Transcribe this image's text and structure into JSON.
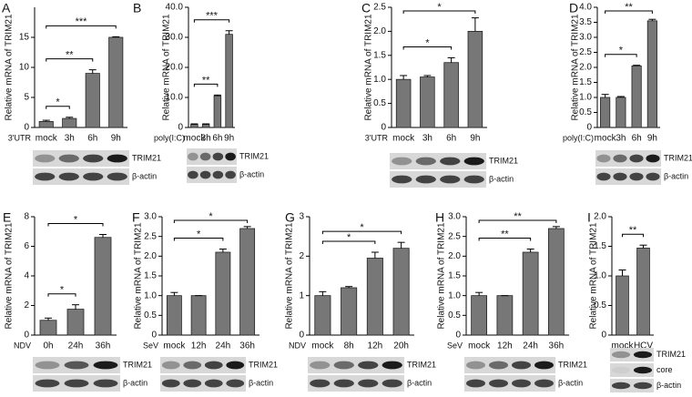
{
  "chart_data": [
    {
      "type": "bar",
      "panel": "A",
      "y_label": "Relative mRNA of TRIM21",
      "treatment": "3'UTR",
      "categories": [
        "mock",
        "3h",
        "6h",
        "9h"
      ],
      "values": [
        1.0,
        1.5,
        9.0,
        15.0
      ],
      "errors": [
        0.2,
        0.2,
        0.6,
        0.1
      ],
      "ylim": [
        0,
        20
      ],
      "yticks": [
        0,
        5,
        10,
        15
      ],
      "annotations": [
        {
          "between": [
            0,
            1
          ],
          "label": "*"
        },
        {
          "between": [
            0,
            2
          ],
          "label": "**"
        },
        {
          "between": [
            0,
            3
          ],
          "label": "***"
        }
      ],
      "blot_labels": [
        "TRIM21",
        "β-actin"
      ],
      "color": "#777777"
    },
    {
      "type": "bar",
      "panel": "B",
      "y_label": "Relative mRNA of TRIM21",
      "treatment": "poly(I:C)",
      "categories": [
        "mock",
        "3h",
        "6h",
        "9h"
      ],
      "values": [
        1.0,
        1.0,
        10.5,
        31.0
      ],
      "errors": [
        0.2,
        0.2,
        0.3,
        1.2
      ],
      "ylim": [
        0,
        40
      ],
      "yticks": [
        0,
        {
          "value": 10,
          "label": "10.0"
        },
        {
          "value": 20,
          "label": "20.0"
        },
        {
          "value": 30,
          "label": "30.0"
        },
        {
          "value": 40,
          "label": "40.0"
        }
      ],
      "annotations": [
        {
          "between": [
            0,
            2
          ],
          "label": "**"
        },
        {
          "between": [
            0,
            3
          ],
          "label": "***"
        }
      ],
      "blot_labels": [
        "TRIM21",
        "β-actin"
      ],
      "color": "#777777"
    },
    {
      "type": "bar",
      "panel": "C",
      "y_label": "Relative mRNA of TRIM21",
      "treatment": "3'UTR",
      "categories": [
        "mock",
        "3h",
        "6h",
        "9h"
      ],
      "values": [
        1.0,
        1.05,
        1.35,
        2.0
      ],
      "errors": [
        0.08,
        0.03,
        0.1,
        0.28
      ],
      "ylim": [
        0,
        2.5
      ],
      "yticks": [
        0,
        0.5,
        {
          "value": 1,
          "label": "1.0"
        },
        1.5,
        {
          "value": 2,
          "label": "2.0"
        },
        2.5
      ],
      "annotations": [
        {
          "between": [
            0,
            2
          ],
          "label": "*"
        },
        {
          "between": [
            0,
            3
          ],
          "label": "*"
        }
      ],
      "blot_labels": [
        "TRIM21",
        "β-actin"
      ],
      "color": "#777777"
    },
    {
      "type": "bar",
      "panel": "D",
      "y_label": "Relative mRNA of TRIM21",
      "treatment": "poly(I:C)",
      "categories": [
        "mock",
        "3h",
        "6h",
        "9h"
      ],
      "values": [
        1.0,
        1.0,
        2.05,
        3.55
      ],
      "errors": [
        0.1,
        0.03,
        0.02,
        0.05
      ],
      "ylim": [
        0,
        4
      ],
      "yticks": [
        0,
        0.5,
        {
          "value": 1,
          "label": "1.0"
        },
        1.5,
        {
          "value": 2,
          "label": "2.0"
        },
        2.5,
        {
          "value": 3,
          "label": "3.0"
        },
        3.5,
        {
          "value": 4,
          "label": "4.0"
        }
      ],
      "annotations": [
        {
          "between": [
            0,
            2
          ],
          "label": "*"
        },
        {
          "between": [
            0,
            3
          ],
          "label": "**"
        }
      ],
      "blot_labels": [
        "TRIM21",
        "β-actin"
      ],
      "color": "#777777"
    },
    {
      "type": "bar",
      "panel": "E",
      "y_label": "Relative mRNA of TRIM21",
      "treatment": "NDV",
      "categories": [
        "0h",
        "24h",
        "36h"
      ],
      "values": [
        1.0,
        1.75,
        6.6
      ],
      "errors": [
        0.15,
        0.3,
        0.2
      ],
      "ylim": [
        0,
        8
      ],
      "yticks": [
        0,
        2,
        4,
        6,
        8
      ],
      "annotations": [
        {
          "between": [
            0,
            1
          ],
          "label": "*"
        },
        {
          "between": [
            0,
            2
          ],
          "label": "*"
        }
      ],
      "blot_labels": [
        "TRIM21",
        "β-actin"
      ],
      "color": "#777777"
    },
    {
      "type": "bar",
      "panel": "F",
      "y_label": "Relative mRNA of TRIM21",
      "treatment": "SeV",
      "categories": [
        "mock",
        "12h",
        "24h",
        "36h"
      ],
      "values": [
        1.0,
        1.0,
        2.1,
        2.7
      ],
      "errors": [
        0.08,
        0,
        0.08,
        0.05
      ],
      "ylim": [
        0,
        3
      ],
      "yticks": [
        0,
        0.5,
        {
          "value": 1,
          "label": "1.0"
        },
        1.5,
        {
          "value": 2,
          "label": "2.0"
        },
        2.5,
        {
          "value": 3,
          "label": "3.0"
        }
      ],
      "annotations": [
        {
          "between": [
            0,
            2
          ],
          "label": "*"
        },
        {
          "between": [
            0,
            3
          ],
          "label": "*"
        }
      ],
      "blot_labels": [
        "TRIM21",
        "β-actin"
      ],
      "color": "#777777"
    },
    {
      "type": "bar",
      "panel": "G",
      "y_label": "Relative mRNA of TRIM21",
      "treatment": "NDV",
      "categories": [
        "mock",
        "8h",
        "12h",
        "20h"
      ],
      "values": [
        1.0,
        1.2,
        1.95,
        2.2
      ],
      "errors": [
        0.1,
        0.03,
        0.15,
        0.15
      ],
      "ylim": [
        0,
        3
      ],
      "yticks": [
        0,
        1,
        2,
        3
      ],
      "annotations": [
        {
          "between": [
            0,
            2
          ],
          "label": "*"
        },
        {
          "between": [
            0,
            3
          ],
          "label": "*"
        }
      ],
      "blot_labels": [
        "TRIM21",
        "β-actin"
      ],
      "color": "#777777"
    },
    {
      "type": "bar",
      "panel": "H",
      "y_label": "Relative mRNA of TRIM21",
      "treatment": "SeV",
      "categories": [
        "mock",
        "12h",
        "24h",
        "36h"
      ],
      "values": [
        1.0,
        1.0,
        2.1,
        2.7
      ],
      "errors": [
        0.08,
        0,
        0.08,
        0.05
      ],
      "ylim": [
        0,
        3
      ],
      "yticks": [
        0,
        0.5,
        {
          "value": 1,
          "label": "1.0"
        },
        1.5,
        {
          "value": 2,
          "label": "2.0"
        },
        2.5,
        {
          "value": 3,
          "label": "3.0"
        }
      ],
      "annotations": [
        {
          "between": [
            0,
            2
          ],
          "label": "**"
        },
        {
          "between": [
            0,
            3
          ],
          "label": "**"
        }
      ],
      "blot_labels": [
        "TRIM21",
        "β-actin"
      ],
      "color": "#777777"
    },
    {
      "type": "bar",
      "panel": "I",
      "y_label": "Relative mRNA of TRIM21",
      "categories": [
        "mock",
        "HCV"
      ],
      "values": [
        1.0,
        1.47
      ],
      "errors": [
        0.1,
        0.05
      ],
      "ylim": [
        0,
        2
      ],
      "yticks": [
        0,
        0.5,
        {
          "value": 1,
          "label": "1.0"
        },
        1.5,
        {
          "value": 2,
          "label": "2.0"
        }
      ],
      "annotations": [
        {
          "between": [
            0,
            1
          ],
          "label": "**"
        }
      ],
      "blot_labels": [
        "TRIM21",
        "core",
        "β-actin"
      ],
      "color": "#777777"
    }
  ]
}
